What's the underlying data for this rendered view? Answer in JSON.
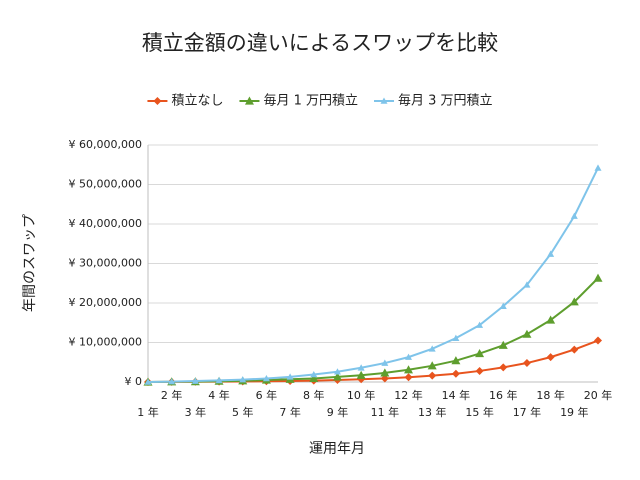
{
  "chart_data": {
    "type": "line",
    "title": "積立金額の違いによるスワップを比較",
    "x_label": "運用年月",
    "y_label": "年間のスワップ",
    "categories": [
      "1 年",
      "2 年",
      "3 年",
      "4 年",
      "5 年",
      "6 年",
      "7 年",
      "8 年",
      "9 年",
      "10 年",
      "11 年",
      "12 年",
      "13 年",
      "14 年",
      "15 年",
      "16 年",
      "17 年",
      "18 年",
      "19 年",
      "20 年"
    ],
    "series": [
      {
        "name": "積立なし",
        "color": "#e8541e",
        "values": [
          0,
          20000,
          50000,
          80000,
          120000,
          180000,
          250000,
          350000,
          500000,
          700000,
          900000,
          1200000,
          1600000,
          2100000,
          2800000,
          3700000,
          4800000,
          6300000,
          8200000,
          10500000
        ]
      },
      {
        "name": "毎月 1 万円積立",
        "color": "#5e9e2e",
        "values": [
          0,
          50000,
          100000,
          200000,
          300000,
          500000,
          700000,
          900000,
          1300000,
          1700000,
          2300000,
          3100000,
          4100000,
          5400000,
          7200000,
          9300000,
          12100000,
          15700000,
          20300000,
          26300000
        ]
      },
      {
        "name": "毎月 3 万円積立",
        "color": "#7fc4ea",
        "values": [
          0,
          100000,
          250000,
          400000,
          600000,
          900000,
          1300000,
          1900000,
          2600000,
          3600000,
          4800000,
          6300000,
          8400000,
          11100000,
          14400000,
          19200000,
          24600000,
          32400000,
          42000000,
          54200000
        ]
      }
    ],
    "ylim": [
      0,
      60000000
    ],
    "yticks": [
      {
        "value": 0,
        "label": "¥ 0"
      },
      {
        "value": 10000000,
        "label": "¥ 10,000,000"
      },
      {
        "value": 20000000,
        "label": "¥ 20,000,000"
      },
      {
        "value": 30000000,
        "label": "¥ 30,000,000"
      },
      {
        "value": 40000000,
        "label": "¥ 40,000,000"
      },
      {
        "value": 50000000,
        "label": "¥ 50,000,000"
      },
      {
        "value": 60000000,
        "label": "¥ 60,000,000"
      }
    ],
    "grid": true
  }
}
